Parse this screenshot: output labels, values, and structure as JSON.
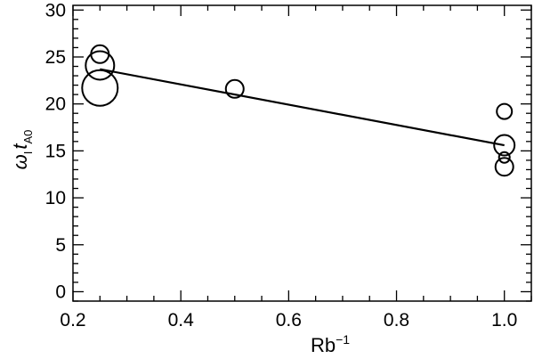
{
  "chart_data": {
    "type": "scatter",
    "xlabel": "Rb",
    "xlabel_superscript": "−1",
    "ylabel": {
      "main": "ω",
      "main_sub": "I",
      "second": "t",
      "second_sub": "A0"
    },
    "xlim": [
      0.2,
      1.05
    ],
    "ylim": [
      -1,
      30.5
    ],
    "x_ticks": [
      0.2,
      0.4,
      0.6,
      0.8,
      1.0
    ],
    "x_tick_labels": [
      "0.2",
      "0.4",
      "0.6",
      "0.8",
      "1.0"
    ],
    "y_ticks": [
      0,
      5,
      10,
      15,
      20,
      25,
      30
    ],
    "y_tick_labels": [
      "0",
      "5",
      "10",
      "15",
      "20",
      "25",
      "30"
    ],
    "x_minor_step": 0.05,
    "y_minor_step": 1,
    "grid": false,
    "points": [
      {
        "x": 0.25,
        "y": 25.3,
        "marker_scale": 1.0
      },
      {
        "x": 0.25,
        "y": 24.1,
        "marker_scale": 1.6
      },
      {
        "x": 0.25,
        "y": 21.7,
        "marker_scale": 2.0
      },
      {
        "x": 0.5,
        "y": 21.6,
        "marker_scale": 1.0
      },
      {
        "x": 1.0,
        "y": 19.2,
        "marker_scale": 0.85
      },
      {
        "x": 1.0,
        "y": 15.6,
        "marker_scale": 1.15
      },
      {
        "x": 1.0,
        "y": 14.3,
        "marker_scale": 0.6
      },
      {
        "x": 1.0,
        "y": 13.3,
        "marker_scale": 1.0
      }
    ],
    "fit_line": {
      "x": [
        0.25,
        1.0
      ],
      "y": [
        23.7,
        15.6
      ]
    },
    "colors": {
      "marks": "#000000",
      "background": "#ffffff"
    }
  }
}
